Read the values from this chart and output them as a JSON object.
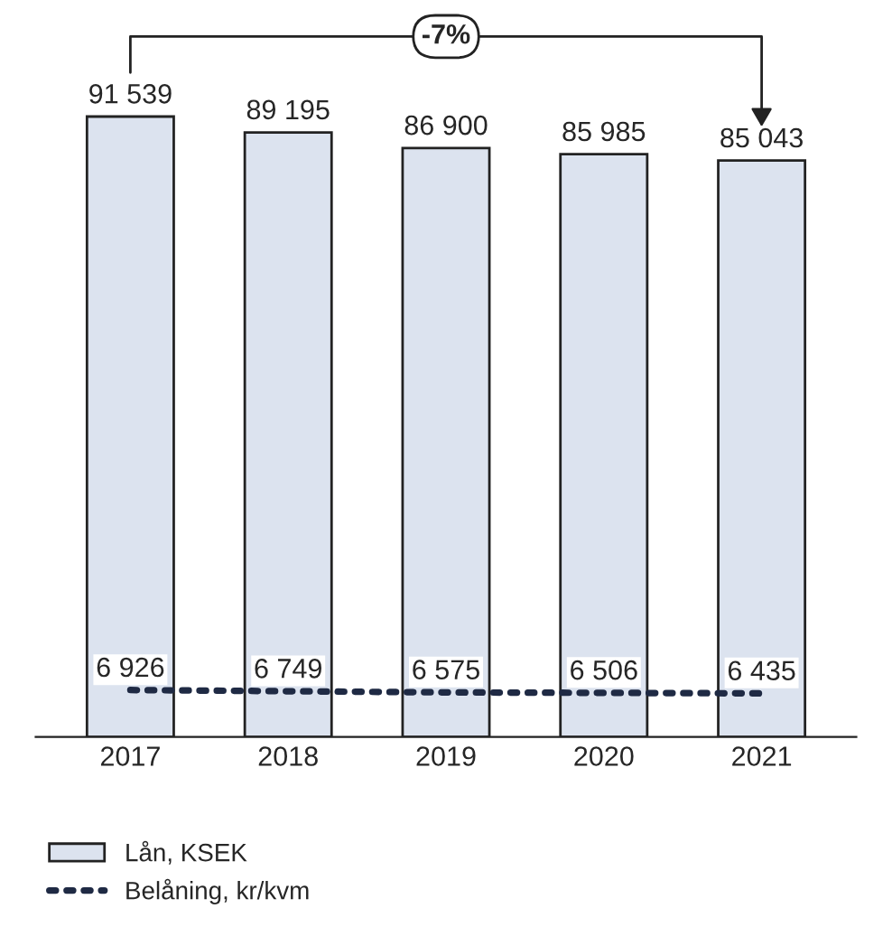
{
  "chart_data": {
    "type": "bar",
    "categories": [
      "2017",
      "2018",
      "2019",
      "2020",
      "2021"
    ],
    "series": [
      {
        "name": "Lån, KSEK",
        "color": "#dce3ef",
        "values": [
          91539,
          89195,
          86900,
          85985,
          85043
        ],
        "value_labels": [
          "91 539",
          "89 195",
          "86 900",
          "85 985",
          "85 043"
        ]
      },
      {
        "name": "Belåning, kr/kvm",
        "type": "line",
        "color": "#1f2a44",
        "line_style": "dotted",
        "values": [
          6926,
          6749,
          6575,
          6506,
          6435
        ],
        "value_labels": [
          "6 926",
          "6 749",
          "6 575",
          "6 506",
          "6 435"
        ]
      }
    ],
    "ylim": [
      0,
      106000
    ],
    "tick_labels": "x",
    "grid": false,
    "legend": "bottom",
    "annotations": [
      "-7%"
    ]
  }
}
